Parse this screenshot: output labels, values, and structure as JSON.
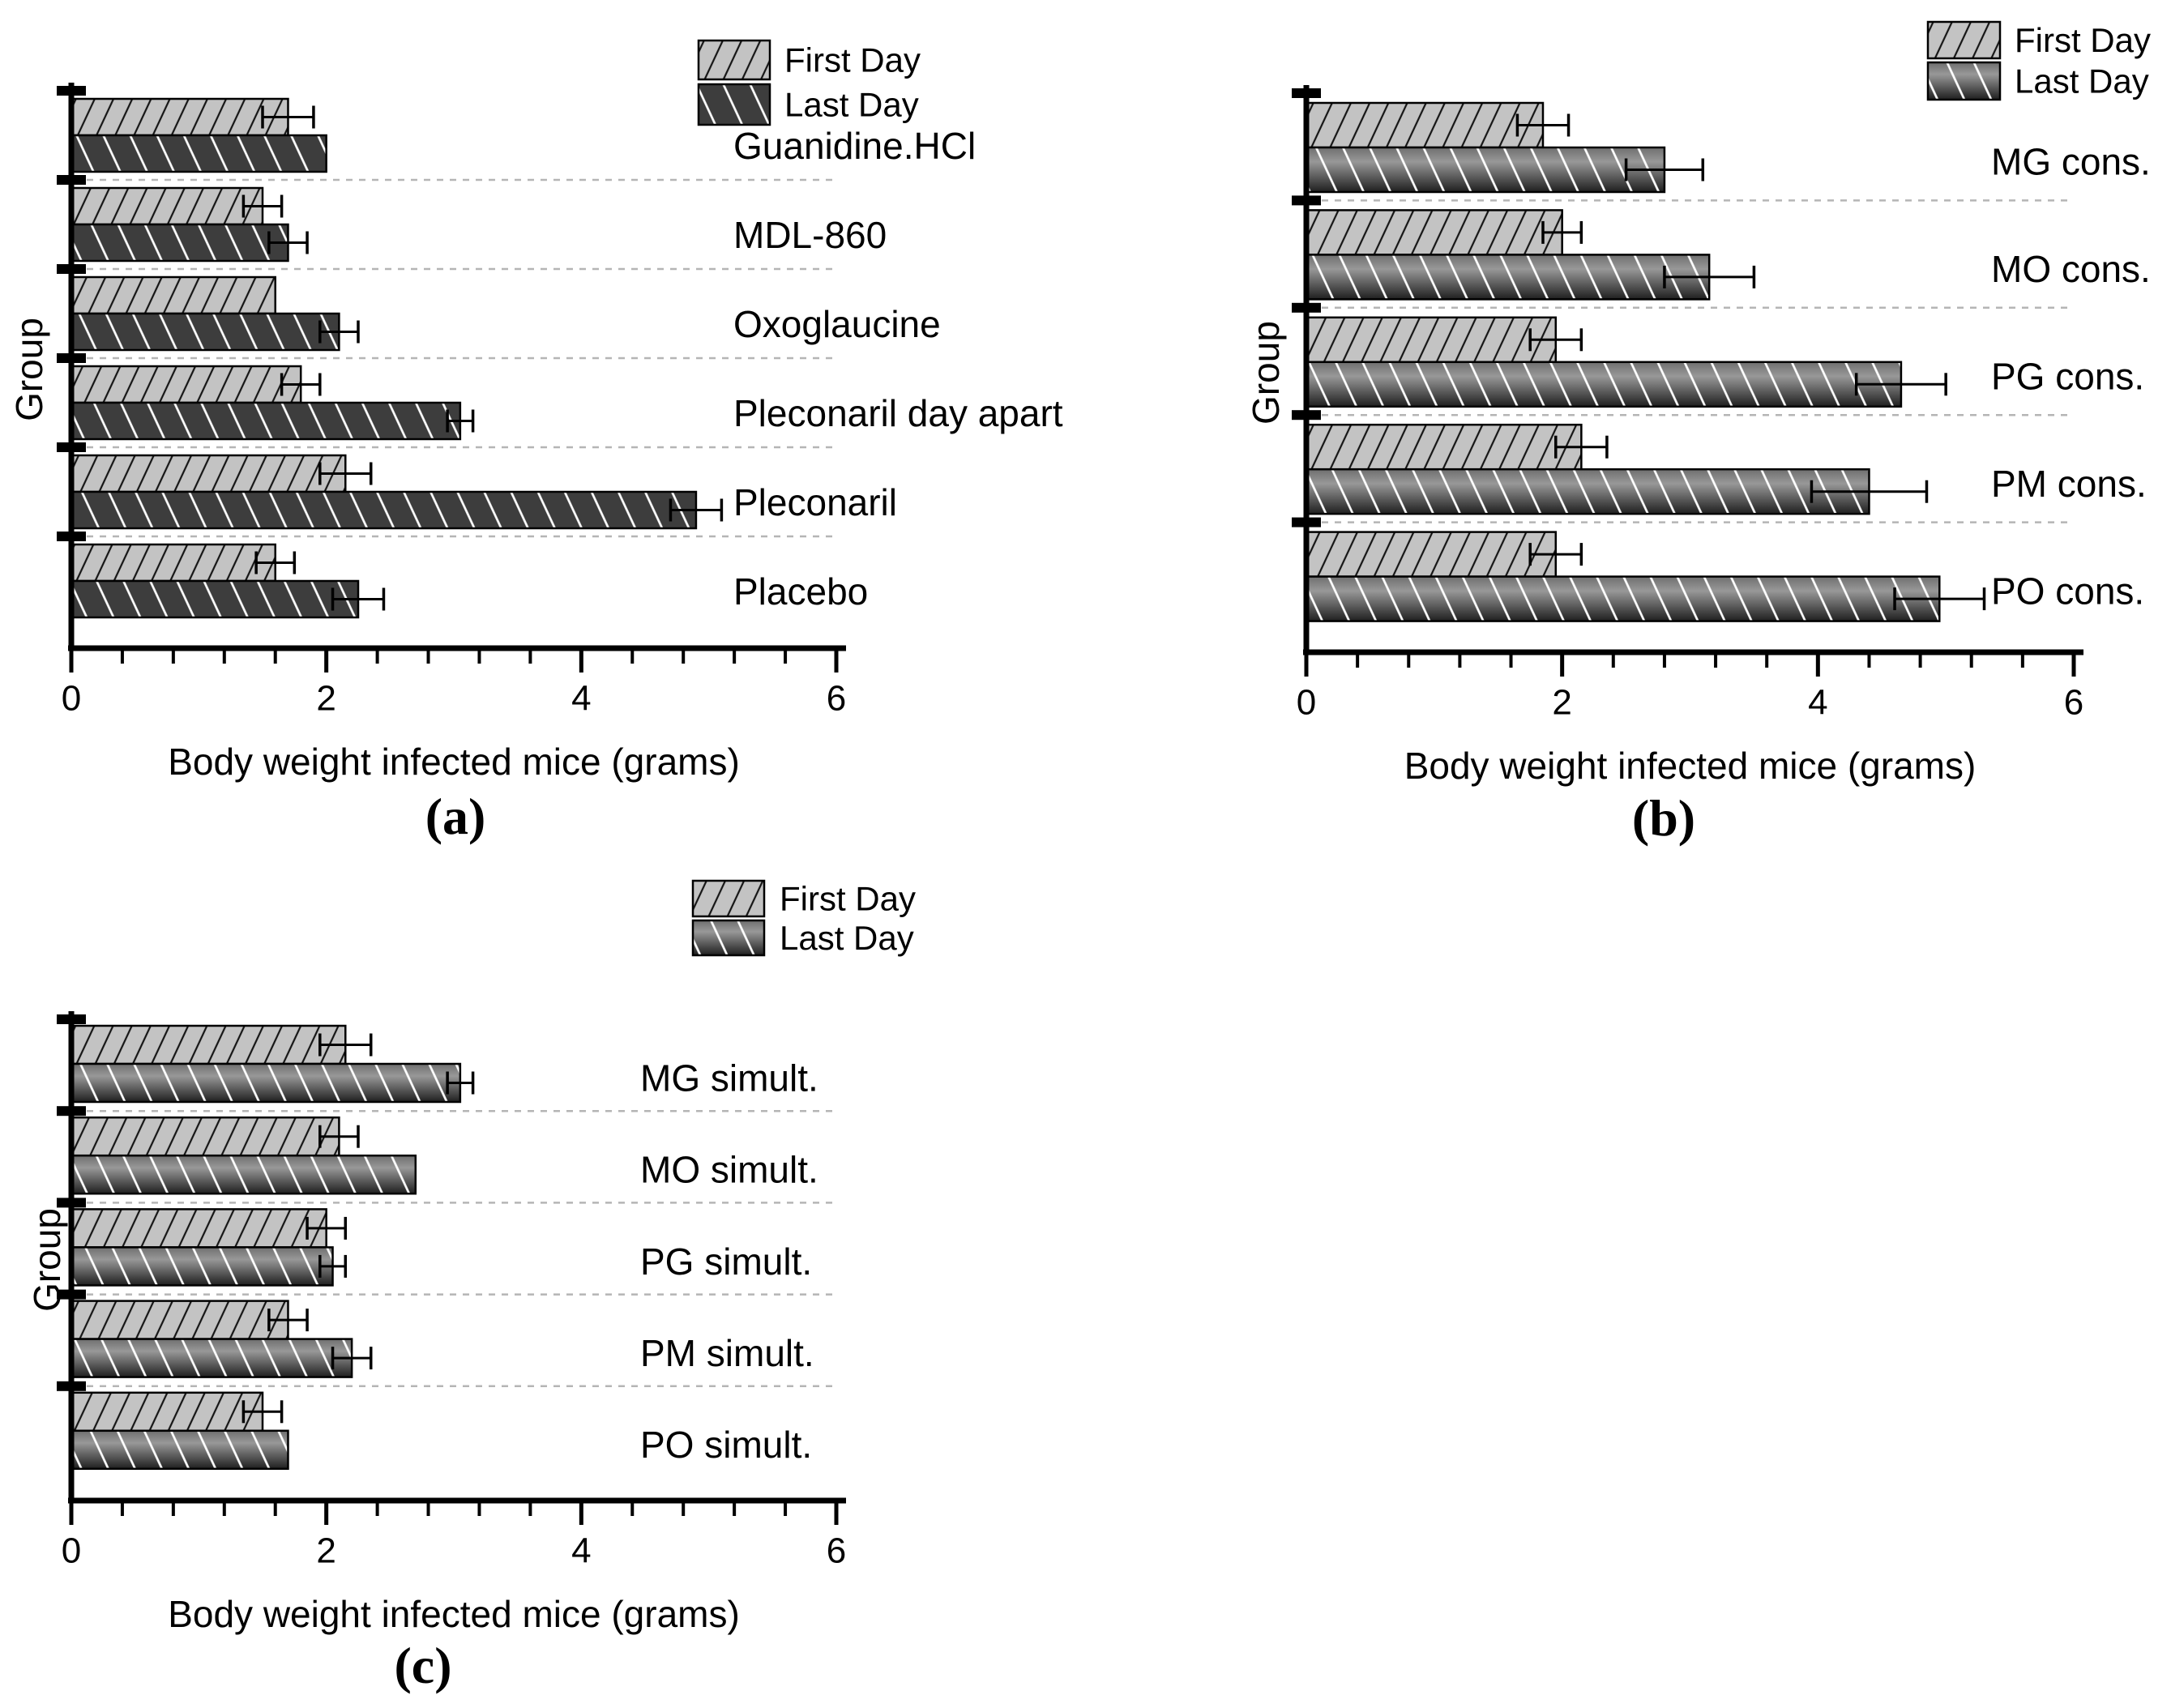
{
  "figure": {
    "background": "#ffffff",
    "captions": {
      "a": "(a)",
      "b": "(b)",
      "c": "(c)"
    }
  },
  "legend": {
    "first_label": "First Day",
    "last_label": "Last Day"
  },
  "colors": {
    "first_fill": "#c3c3c3",
    "first_hatch": "#151515",
    "last_fill_flat": "#3d3d3d",
    "last_hatch": "#ffffff",
    "last_gradient_top": "#6f6f6f",
    "last_gradient_mid": "#989898",
    "last_gradient_bottom": "#1f1f1f",
    "separator": "#b5b5b5",
    "axis": "#000000"
  },
  "chart_data": [
    {
      "id": "a",
      "type": "bar",
      "orientation": "horizontal",
      "caption": "(a)",
      "xlabel": "Body weight infected mice (grams)",
      "ylabel": "Group",
      "xlim": [
        0,
        6
      ],
      "xticks": [
        0,
        2,
        4,
        6
      ],
      "minor_tick_step": 0.4,
      "grid": "dashed-group-separators",
      "legend_position": "top-right",
      "legend": [
        "First Day",
        "Last Day"
      ],
      "categories": [
        "Guanidine.HCl",
        "MDL-860",
        "Oxoglaucine",
        "Pleconaril day apart",
        "Pleconaril",
        "Placebo"
      ],
      "series": [
        {
          "name": "First Day",
          "values": [
            1.7,
            1.5,
            1.6,
            1.8,
            2.15,
            1.6
          ],
          "errors": [
            0.2,
            0.15,
            0,
            0.15,
            0.2,
            0.15
          ]
        },
        {
          "name": "Last Day",
          "values": [
            2.0,
            1.7,
            2.1,
            3.05,
            4.9,
            2.25
          ],
          "errors": [
            0,
            0.15,
            0.15,
            0.1,
            0.2,
            0.2
          ]
        }
      ]
    },
    {
      "id": "b",
      "type": "bar",
      "orientation": "horizontal",
      "caption": "(b)",
      "xlabel": "Body weight infected mice (grams)",
      "ylabel": "Group",
      "xlim": [
        0,
        6
      ],
      "xticks": [
        0,
        2,
        4,
        6
      ],
      "minor_tick_step": 0.4,
      "grid": "dashed-group-separators",
      "legend_position": "top-right",
      "legend": [
        "First Day",
        "Last Day"
      ],
      "categories": [
        "MG cons.",
        "MO cons.",
        "PG cons.",
        "PM cons.",
        "PO cons."
      ],
      "series": [
        {
          "name": "First Day",
          "values": [
            1.85,
            2.0,
            1.95,
            2.15,
            1.95
          ],
          "errors": [
            0.2,
            0.15,
            0.2,
            0.2,
            0.2
          ]
        },
        {
          "name": "Last Day",
          "values": [
            2.8,
            3.15,
            4.65,
            4.4,
            4.95
          ],
          "errors": [
            0.3,
            0.35,
            0.35,
            0.45,
            0.35
          ]
        }
      ]
    },
    {
      "id": "c",
      "type": "bar",
      "orientation": "horizontal",
      "caption": "(c)",
      "xlabel": "Body weight infected mice (grams)",
      "ylabel": "Group",
      "xlim": [
        0,
        6
      ],
      "xticks": [
        0,
        2,
        4,
        6
      ],
      "minor_tick_step": 0.4,
      "grid": "dashed-group-separators",
      "legend_position": "top-right",
      "legend": [
        "First Day",
        "Last Day"
      ],
      "categories": [
        "MG simult.",
        "MO simult.",
        "PG simult.",
        "PM simult.",
        "PO simult."
      ],
      "series": [
        {
          "name": "First Day",
          "values": [
            2.15,
            2.1,
            2.0,
            1.7,
            1.5
          ],
          "errors": [
            0.2,
            0.15,
            0.15,
            0.15,
            0.15
          ]
        },
        {
          "name": "Last Day",
          "values": [
            3.05,
            2.7,
            2.05,
            2.2,
            1.7
          ],
          "errors": [
            0.1,
            0,
            0.1,
            0.15,
            0
          ]
        }
      ]
    }
  ]
}
